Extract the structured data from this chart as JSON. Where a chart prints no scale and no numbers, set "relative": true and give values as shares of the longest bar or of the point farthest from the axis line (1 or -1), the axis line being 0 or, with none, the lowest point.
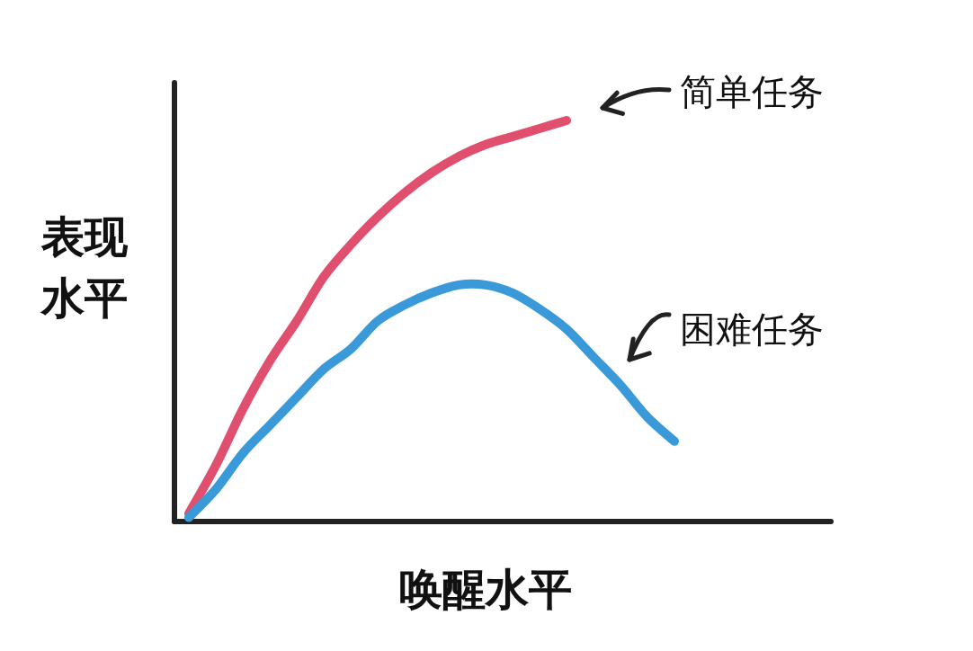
{
  "chart_data": {
    "type": "line",
    "relative": true,
    "marker": "none",
    "line_style": "solid",
    "xlabel": "唤醒水平",
    "ylabel": "表现水平",
    "categories": [
      null,
      null,
      null,
      null,
      null,
      null,
      null,
      null,
      null,
      null,
      null,
      null,
      null,
      null,
      null,
      null,
      null,
      null,
      null,
      null
    ],
    "series": [
      {
        "name": "简单任务",
        "color": "#e0506e",
        "values": [
          0.02,
          0.14,
          0.28,
          0.4,
          0.5,
          0.61,
          0.69,
          0.76,
          0.82,
          0.87,
          0.91,
          0.94,
          0.96,
          0.98,
          1,
          null,
          null,
          null,
          null,
          null
        ]
      },
      {
        "name": "困难任务",
        "color": "#3a9ad9",
        "values": [
          0.01,
          0.08,
          0.17,
          0.24,
          0.31,
          0.38,
          0.43,
          0.5,
          0.54,
          0.57,
          0.59,
          0.59,
          0.57,
          0.53,
          0.48,
          0.41,
          0.34,
          0.26,
          0.2,
          null
        ]
      }
    ]
  }
}
